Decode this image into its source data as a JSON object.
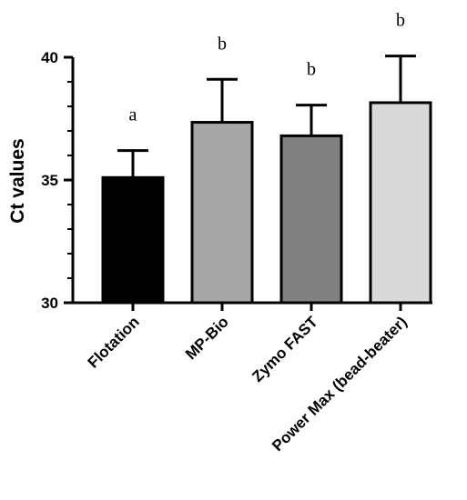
{
  "chart_data": {
    "type": "bar",
    "title": "",
    "xlabel": "",
    "ylabel": "Ct values",
    "ylim": [
      30,
      40
    ],
    "yticks_major": [
      30,
      35,
      40
    ],
    "ytick_labels": [
      "30",
      "35",
      "40"
    ],
    "yticks_minor_step": 1,
    "grid": false,
    "legend": "none",
    "categories": [
      "Flotation",
      "MP-Bio",
      "Zymo FAST",
      "Power Max (bead-beater)"
    ],
    "values": [
      35.1,
      37.35,
      36.8,
      38.15
    ],
    "error_upper": [
      1.1,
      1.75,
      1.25,
      1.9
    ],
    "significance_labels": [
      "a",
      "b",
      "b",
      "b"
    ],
    "colors": [
      "#000000",
      "#a6a6a6",
      "#808080",
      "#d9d9d9"
    ],
    "edge_color": "#000000"
  }
}
